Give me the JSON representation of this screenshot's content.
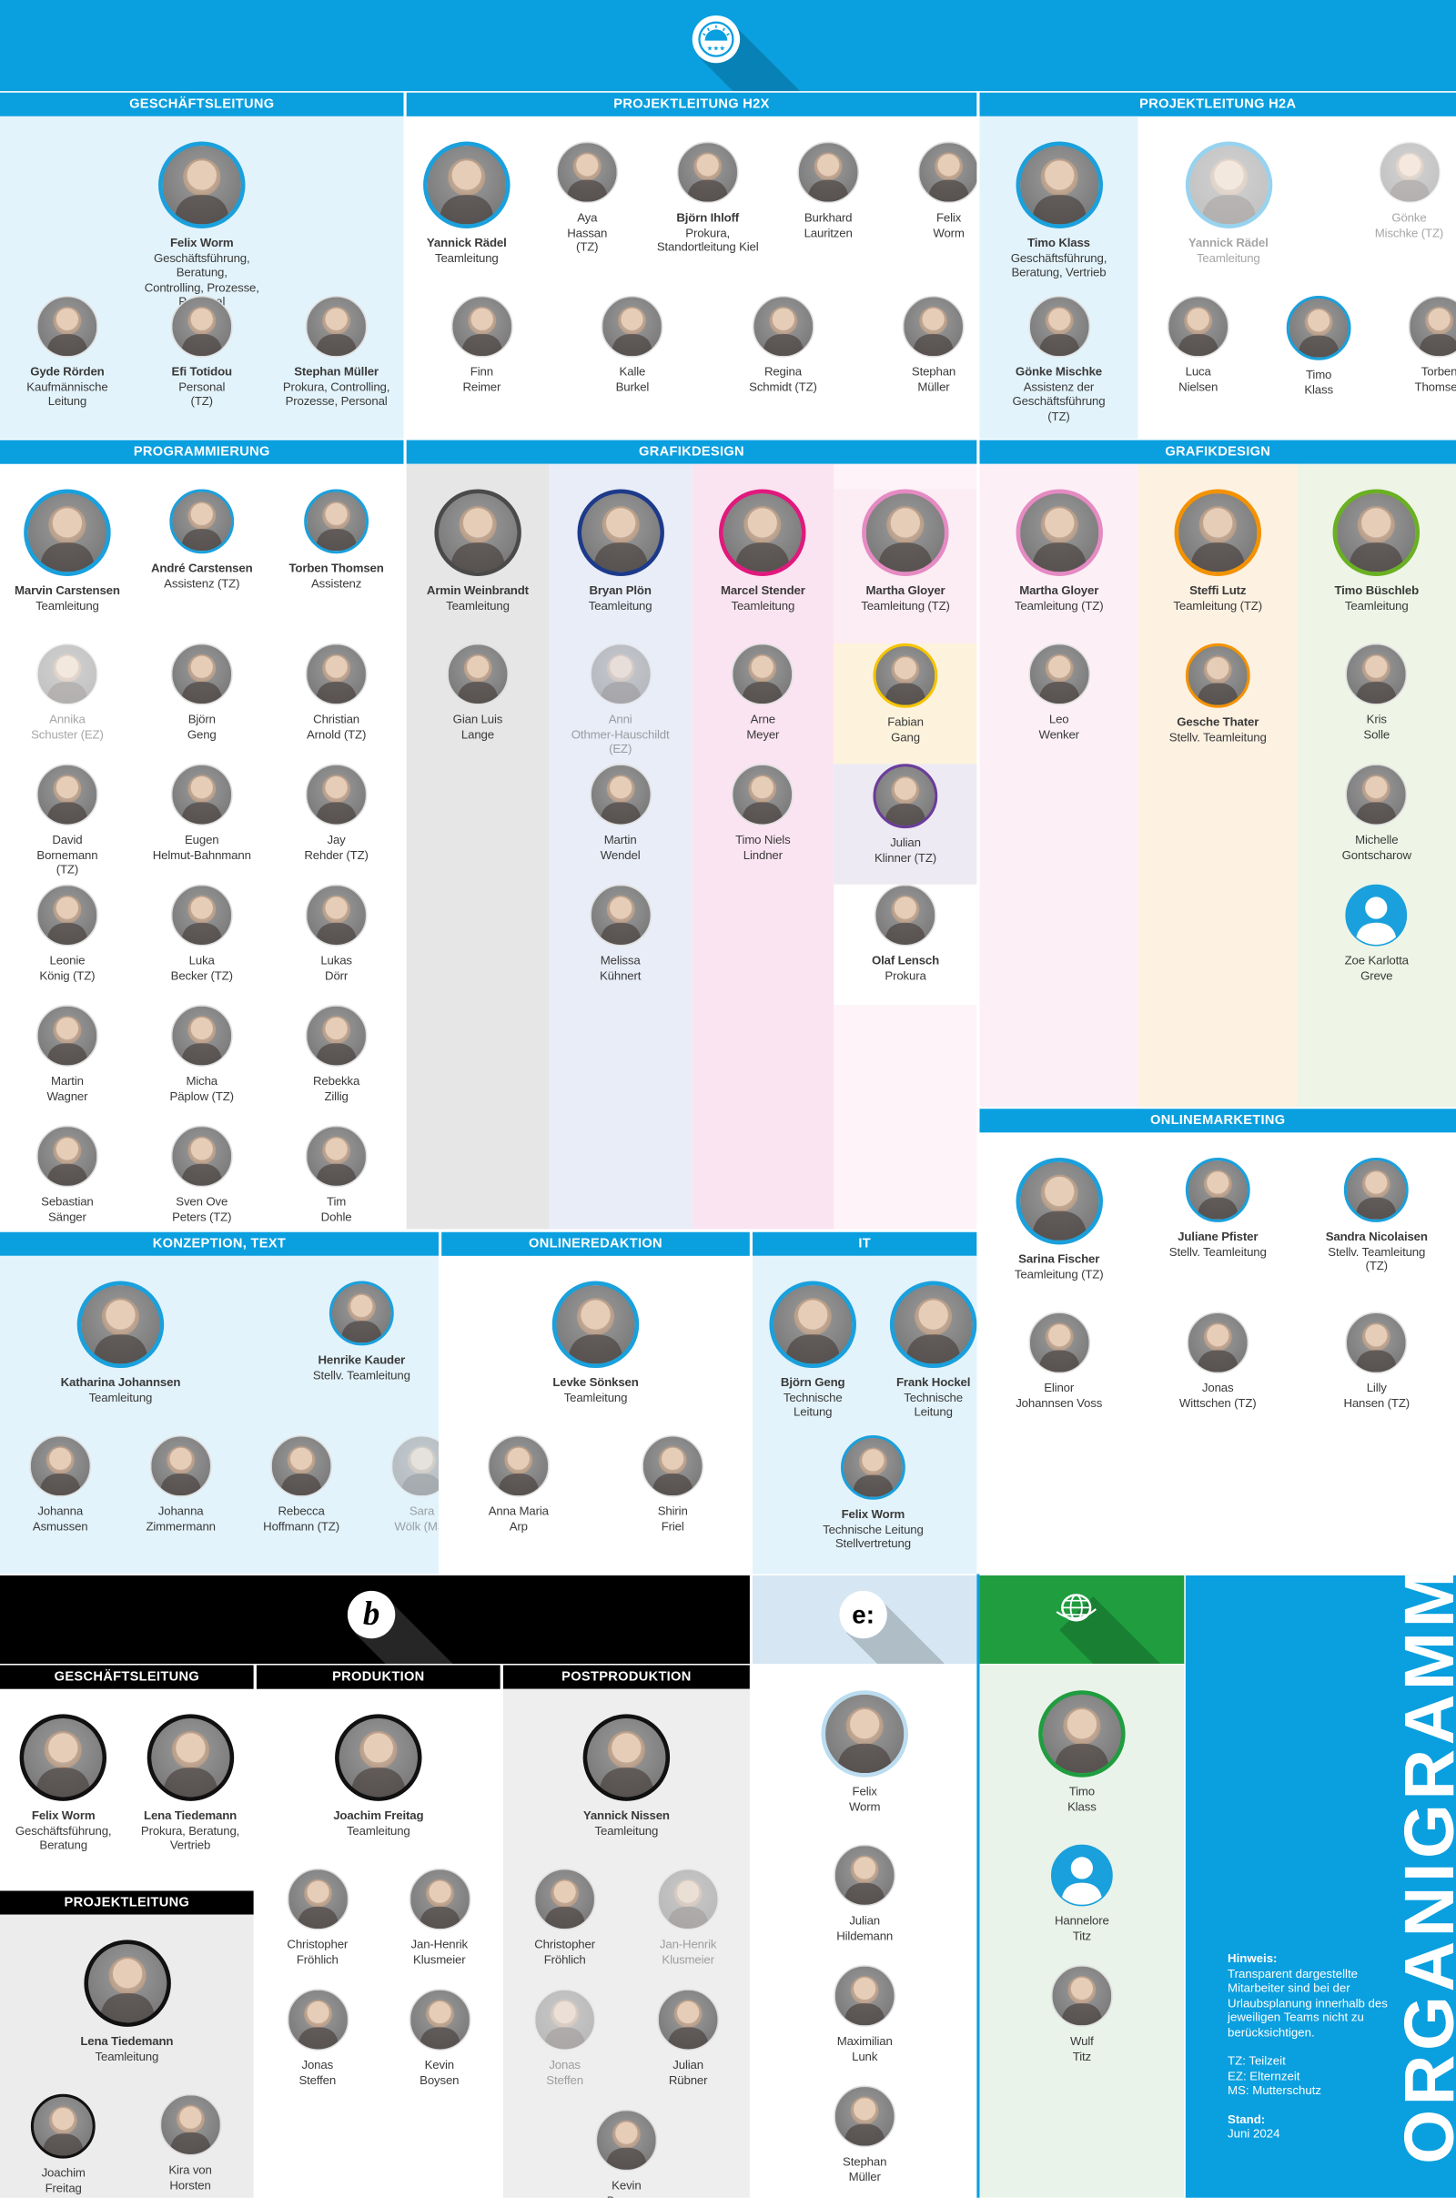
{
  "colors": {
    "brand_blue": "#0a9fdf",
    "ring_blue": "#1aa0dc",
    "black_band": "#000000",
    "green_band": "#1f9d3f"
  },
  "logos": {
    "top": "sunrise-stars-logo",
    "b": "b",
    "e": "e:",
    "globe": "globe-icon"
  },
  "organigramm": {
    "title": "ORGANIGRAMM",
    "hint_label": "Hinweis:",
    "hint_text": "Transparent dargestellte Mitarbeiter sind bei der Urlaubsplanung innerhalb des jeweiligen Teams nicht zu berücksichtigen.",
    "tz": "TZ: Teilzeit",
    "ez": "EZ: Elternzeit",
    "ms": "MS: Mutterschutz",
    "stand_label": "Stand:",
    "stand": "Juni 2024"
  },
  "sections": {
    "gl": {
      "title": "GESCHÄFTSLEITUNG",
      "columns": [
        {
          "bg": "#e3f3fb",
          "rows": [
            [
              {
                "name": "Felix Worm",
                "role": "Geschäftsführung, Beratung,\nControlling, Prozesse, Personal",
                "lead": true
              }
            ],
            [
              {
                "name": "Gyde Rörden",
                "role": "Kaufmännische\nLeitung"
              },
              {
                "name": "Efi Totidou",
                "role": "Personal\n(TZ)"
              },
              {
                "name": "Stephan Müller",
                "role": "Prokura, Controlling,\nProzesse, Personal"
              }
            ]
          ]
        }
      ]
    },
    "h2x": {
      "title": "PROJEKTLEITUNG H2X",
      "columns": [
        {
          "rows": [
            [
              {
                "name": "Yannick Rädel",
                "role": "Teamleitung",
                "lead": true
              },
              {
                "name": "Aya\nHassan\n(TZ)"
              },
              {
                "name": "Björn Ihloff",
                "role": "Prokura,\nStandortleitung Kiel"
              },
              {
                "name": "Burkhard\nLauritzen"
              },
              {
                "name": "Felix\nWorm"
              }
            ],
            [
              {
                "name": "Finn\nReimer"
              },
              {
                "name": "Kalle\nBurkel"
              },
              {
                "name": "Regina\nSchmidt (TZ)"
              },
              {
                "name": "Stephan\nMüller"
              }
            ]
          ]
        }
      ]
    },
    "h2a": {
      "title": "PROJEKTLEITUNG H2A",
      "columns": [
        {
          "bg": "#e3f3fb",
          "rows": [
            [
              {
                "name": "Timo Klass",
                "role": "Geschäftsführung,\nBeratung, Vertrieb",
                "lead": true
              }
            ],
            [
              {
                "name": "Gönke Mischke",
                "role": "Assistenz der\nGeschäftsführung\n(TZ)"
              }
            ]
          ]
        },
        {
          "rows": [
            [
              {
                "name": "Yannick Rädel",
                "role": "Teamleitung",
                "lead": true,
                "faded": true
              },
              {
                "name": "Gönke\nMischke (TZ)",
                "faded": true
              }
            ],
            [
              {
                "name": "Luca\nNielsen"
              },
              {
                "name": "Timo\nKlass",
                "ring": "#1aa0dc"
              },
              {
                "name": "Torben\nThomsen"
              }
            ]
          ]
        }
      ]
    },
    "prog": {
      "title": "PROGRAMMIERUNG",
      "columns": [
        {
          "rows": [
            [
              {
                "name": "Marvin Carstensen",
                "role": "Teamleitung",
                "lead": true
              },
              {
                "name": "André Carstensen",
                "role": "Assistenz (TZ)",
                "ring": "#1aa0dc"
              },
              {
                "name": "Torben Thomsen",
                "role": "Assistenz",
                "ring": "#1aa0dc"
              }
            ],
            [
              {
                "name": "Annika\nSchuster (EZ)",
                "faded": true
              },
              {
                "name": "Björn\nGeng"
              },
              {
                "name": "Christian\nArnold (TZ)"
              }
            ],
            [
              {
                "name": "David\nBornemann\n(TZ)"
              },
              {
                "name": "Eugen\nHelmut-Bahnmann"
              },
              {
                "name": "Jay\nRehder (TZ)"
              }
            ],
            [
              {
                "name": "Leonie\nKönig (TZ)"
              },
              {
                "name": "Luka\nBecker (TZ)"
              },
              {
                "name": "Lukas\nDörr"
              }
            ],
            [
              {
                "name": "Martin\nWagner"
              },
              {
                "name": "Micha\nPäplow (TZ)"
              },
              {
                "name": "Rebekka\nZillig"
              }
            ],
            [
              {
                "name": "Sebastian\nSänger"
              },
              {
                "name": "Sven Ove\nPeters (TZ)"
              },
              {
                "name": "Tim\nDohle"
              }
            ]
          ]
        }
      ]
    },
    "gfx1": {
      "title": "GRAFIKDESIGN",
      "columns": [
        {
          "bg": "#e6e6e6",
          "rows": [
            [
              {
                "name": "Armin Weinbrandt",
                "role": "Teamleitung",
                "lead": true,
                "ring": "#4a4a4a"
              }
            ],
            [
              {
                "name": "Gian Luis\nLange"
              }
            ]
          ]
        },
        {
          "bg": "#e8edf7",
          "rows": [
            [
              {
                "name": "Bryan Plön",
                "role": "Teamleitung",
                "lead": true,
                "ring": "#1d3a8a"
              }
            ],
            [
              {
                "name": "Anni\nOthmer-Hauschildt\n(EZ)",
                "faded": true
              }
            ],
            [
              {
                "name": "Martin\nWendel"
              }
            ],
            [
              {
                "name": "Melissa\nKühnert"
              }
            ]
          ]
        },
        {
          "bg": "#fbe4f1",
          "rows": [
            [
              {
                "name": "Marcel Stender",
                "role": "Teamleitung",
                "lead": true,
                "ring": "#e0197d"
              }
            ],
            [
              {
                "name": "Arne\nMeyer"
              }
            ],
            [
              {
                "name": "Timo Niels\nLindner"
              }
            ]
          ]
        },
        {
          "bg": "#fdf3f8",
          "rows": [
            [
              {
                "name": "Martha Gloyer",
                "role": "Teamleitung (TZ)",
                "lead": true,
                "ring": "#e58ac2",
                "tint": "#fcecf4"
              }
            ],
            [
              {
                "name": "Fabian\nGang",
                "ring": "#f5c400",
                "tint": "#fdf3dc"
              }
            ],
            [
              {
                "name": "Julian\nKlinner (TZ)",
                "ring": "#6a3d9a",
                "tint": "#eeeaf3"
              }
            ],
            [
              {
                "name": "Olaf Lensch",
                "role": "Prokura",
                "tint": "#ffffff"
              }
            ]
          ]
        }
      ]
    },
    "gfx2": {
      "title": "GRAFIKDESIGN",
      "columns": [
        {
          "bg": "#fcf0f6",
          "rows": [
            [
              {
                "name": "Martha Gloyer",
                "role": "Teamleitung (TZ)",
                "lead": true,
                "ring": "#e58ac2"
              }
            ],
            [
              {
                "name": "Leo\nWenker"
              }
            ]
          ]
        },
        {
          "bg": "#fdf1e2",
          "rows": [
            [
              {
                "name": "Steffi Lutz",
                "role": "Teamleitung (TZ)",
                "lead": true,
                "ring": "#f39200"
              }
            ],
            [
              {
                "name": "Gesche Thater",
                "role": "Stellv. Teamleitung",
                "ring": "#f39200"
              }
            ]
          ]
        },
        {
          "bg": "#eef5e6",
          "rows": [
            [
              {
                "name": "Timo Büschleb",
                "role": "Teamleitung",
                "lead": true,
                "ring": "#6ab023"
              }
            ],
            [
              {
                "name": "Kris\nSolle"
              }
            ],
            [
              {
                "name": "Michelle\nGontscharow"
              }
            ],
            [
              {
                "name": "Zoe Karlotta\nGreve",
                "placeholder": true
              }
            ]
          ]
        }
      ]
    },
    "om": {
      "title": "ONLINEMARKETING",
      "columns": [
        {
          "rows": [
            [
              {
                "name": "Sarina Fischer",
                "role": "Teamleitung (TZ)",
                "lead": true
              },
              {
                "name": "Juliane Pfister",
                "role": "Stellv. Teamleitung",
                "ring": "#1aa0dc"
              },
              {
                "name": "Sandra Nicolaisen",
                "role": "Stellv. Teamleitung (TZ)",
                "ring": "#1aa0dc"
              }
            ],
            [
              {
                "name": "Elinor\nJohannsen Voss"
              },
              {
                "name": "Jonas\nWittschen (TZ)"
              },
              {
                "name": "Lilly\nHansen (TZ)"
              }
            ]
          ]
        }
      ]
    },
    "konz": {
      "title": "KONZEPTION, TEXT",
      "columns": [
        {
          "bg": "#e3f3fb",
          "rows": [
            [
              {
                "name": "Katharina Johannsen",
                "role": "Teamleitung",
                "lead": true
              },
              {
                "name": "Henrike Kauder",
                "role": "Stellv. Teamleitung",
                "ring": "#1aa0dc"
              }
            ],
            [
              {
                "name": "Johanna\nAsmussen"
              },
              {
                "name": "Johanna\nZimmermann"
              },
              {
                "name": "Rebecca\nHoffmann (TZ)"
              },
              {
                "name": "Sara\nWölk (MS)",
                "faded": true
              }
            ]
          ]
        }
      ]
    },
    "ored": {
      "title": "ONLINEREDAKTION",
      "columns": [
        {
          "rows": [
            [
              {
                "name": "Levke Sönksen",
                "role": "Teamleitung",
                "lead": true
              }
            ],
            [
              {
                "name": "Anna Maria\nArp"
              },
              {
                "name": "Shirin\nFriel"
              }
            ]
          ]
        }
      ]
    },
    "it": {
      "title": "IT",
      "columns": [
        {
          "bg": "#e3f3fb",
          "rows": [
            [
              {
                "name": "Björn Geng",
                "role": "Technische\nLeitung",
                "lead": true
              },
              {
                "name": "Frank Hockel",
                "role": "Technische\nLeitung",
                "lead": true
              }
            ],
            [
              {
                "name": "Felix Worm",
                "role": "Technische Leitung\nStellvertretung",
                "ring": "#1aa0dc"
              }
            ]
          ]
        }
      ]
    },
    "bgl": {
      "title": "GESCHÄFTSLEITUNG",
      "columns": [
        {
          "rows": [
            [
              {
                "name": "Felix Worm",
                "role": "Geschäftsführung,\nBeratung",
                "lead": true,
                "ring": "#111111"
              },
              {
                "name": "Lena Tiedemann",
                "role": "Prokura, Beratung,\nVertrieb",
                "lead": true,
                "ring": "#111111"
              }
            ]
          ]
        }
      ]
    },
    "bpl": {
      "title": "PROJEKTLEITUNG",
      "columns": [
        {
          "bg": "#ececec",
          "rows": [
            [
              {
                "name": "Lena Tiedemann",
                "role": "Teamleitung",
                "lead": true,
                "ring": "#111111"
              }
            ],
            [
              {
                "name": "Joachim\nFreitag",
                "ring": "#111111"
              },
              {
                "name": "Kira von\nHorsten"
              }
            ]
          ]
        }
      ]
    },
    "bprod": {
      "title": "PRODUKTION",
      "columns": [
        {
          "rows": [
            [
              {
                "name": "Joachim Freitag",
                "role": "Teamleitung",
                "lead": true,
                "ring": "#111111"
              }
            ],
            [
              {
                "name": "Christopher\nFröhlich"
              },
              {
                "name": "Jan-Henrik\nKlusmeier"
              }
            ],
            [
              {
                "name": "Jonas\nSteffen"
              },
              {
                "name": "Kevin\nBoysen"
              }
            ]
          ]
        }
      ]
    },
    "bpost": {
      "title": "POSTPRODUKTION",
      "columns": [
        {
          "bg": "#eeeeee",
          "rows": [
            [
              {
                "name": "Yannick Nissen",
                "role": "Teamleitung",
                "lead": true,
                "ring": "#111111"
              }
            ],
            [
              {
                "name": "Christopher\nFröhlich"
              },
              {
                "name": "Jan-Henrik\nKlusmeier",
                "faded": true
              }
            ],
            [
              {
                "name": "Jonas\nSteffen",
                "faded": true
              },
              {
                "name": "Julian\nRübner"
              }
            ],
            [
              {
                "name": "Kevin\nBoysen"
              }
            ]
          ]
        }
      ]
    },
    "esec": {
      "title": "",
      "columns": [
        {
          "rows": [
            [
              {
                "name": "Felix\nWorm",
                "lead": true,
                "ring": "#bcdcef"
              }
            ],
            [
              {
                "name": "Julian\nHildemann"
              }
            ],
            [
              {
                "name": "Maximilian\nLunk"
              }
            ],
            [
              {
                "name": "Stephan\nMüller"
              }
            ]
          ]
        }
      ]
    },
    "gsec": {
      "title": "",
      "columns": [
        {
          "bg": "#e9f3ea",
          "rows": [
            [
              {
                "name": "Timo\nKlass",
                "lead": true,
                "ring": "#1f9d3f"
              }
            ],
            [
              {
                "name": "Hannelore\nTitz",
                "placeholder": true
              }
            ],
            [
              {
                "name": "Wulf\nTitz"
              }
            ]
          ]
        }
      ]
    }
  }
}
